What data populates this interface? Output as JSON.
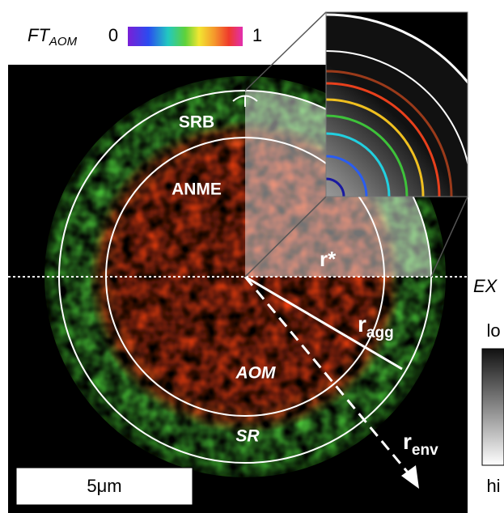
{
  "legend": {
    "label": "FT",
    "subscript": "AOM",
    "min": "0",
    "max": "1"
  },
  "regions": {
    "srb": "SRB",
    "anme": "ANME",
    "aom": "AOM",
    "sr": "SR"
  },
  "radii": {
    "r_star": "r*",
    "r_agg": "r",
    "r_agg_sub": "agg",
    "r_env": "r",
    "r_env_sub": "env"
  },
  "excitation": {
    "label": "EX",
    "low": "lo",
    "high": "hi"
  },
  "scale_bar": "5μm"
}
